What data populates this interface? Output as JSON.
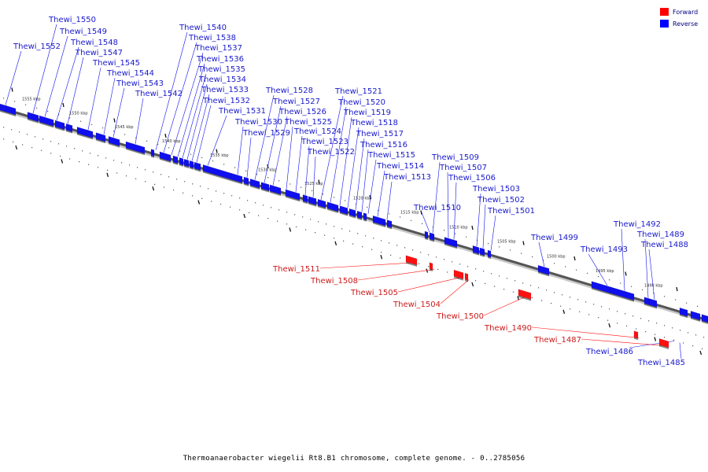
{
  "caption": "Thermoanaerobacter wiegelii Rt8.B1 chromosome, complete genome. - 0..2785056",
  "legend": [
    {
      "label": "Forward",
      "color": "#ff0000"
    },
    {
      "label": "Reverse",
      "color": "#0000ff"
    }
  ],
  "colors": {
    "forward": "#ff1010",
    "reverse": "#1010ee",
    "forward_label": "#cc1a1a",
    "reverse_label": "#1a1acc"
  },
  "scale_labels": [
    "1555 kbp",
    "1550 kbp",
    "1545 kbp",
    "1540 kbp",
    "1535 kbp",
    "1530 kbp",
    "1525 kbp",
    "1520 kbp",
    "1515 kbp",
    "1510 kbp",
    "1505 kbp",
    "1500 kbp",
    "1495 kbp",
    "1490 kbp"
  ],
  "reverse_genes": [
    "Thewi_1552",
    "Thewi_1550",
    "Thewi_1549",
    "Thewi_1548",
    "Thewi_1547",
    "Thewi_1545",
    "Thewi_1544",
    "Thewi_1543",
    "Thewi_1542",
    "Thewi_1540",
    "Thewi_1538",
    "Thewi_1537",
    "Thewi_1536",
    "Thewi_1535",
    "Thewi_1534",
    "Thewi_1533",
    "Thewi_1532",
    "Thewi_1531",
    "Thewi_1530",
    "Thewi_1529",
    "Thewi_1528",
    "Thewi_1527",
    "Thewi_1526",
    "Thewi_1525",
    "Thewi_1524",
    "Thewi_1523",
    "Thewi_1522",
    "Thewi_1521",
    "Thewi_1520",
    "Thewi_1519",
    "Thewi_1518",
    "Thewi_1517",
    "Thewi_1516",
    "Thewi_1515",
    "Thewi_1514",
    "Thewi_1513",
    "Thewi_1510",
    "Thewi_1509",
    "Thewi_1507",
    "Thewi_1506",
    "Thewi_1503",
    "Thewi_1502",
    "Thewi_1501",
    "Thewi_1499",
    "Thewi_1493",
    "Thewi_1492",
    "Thewi_1489",
    "Thewi_1488",
    "Thewi_1486",
    "Thewi_1485"
  ],
  "forward_genes": [
    "Thewi_1511",
    "Thewi_1508",
    "Thewi_1505",
    "Thewi_1504",
    "Thewi_1500",
    "Thewi_1490",
    "Thewi_1487"
  ]
}
